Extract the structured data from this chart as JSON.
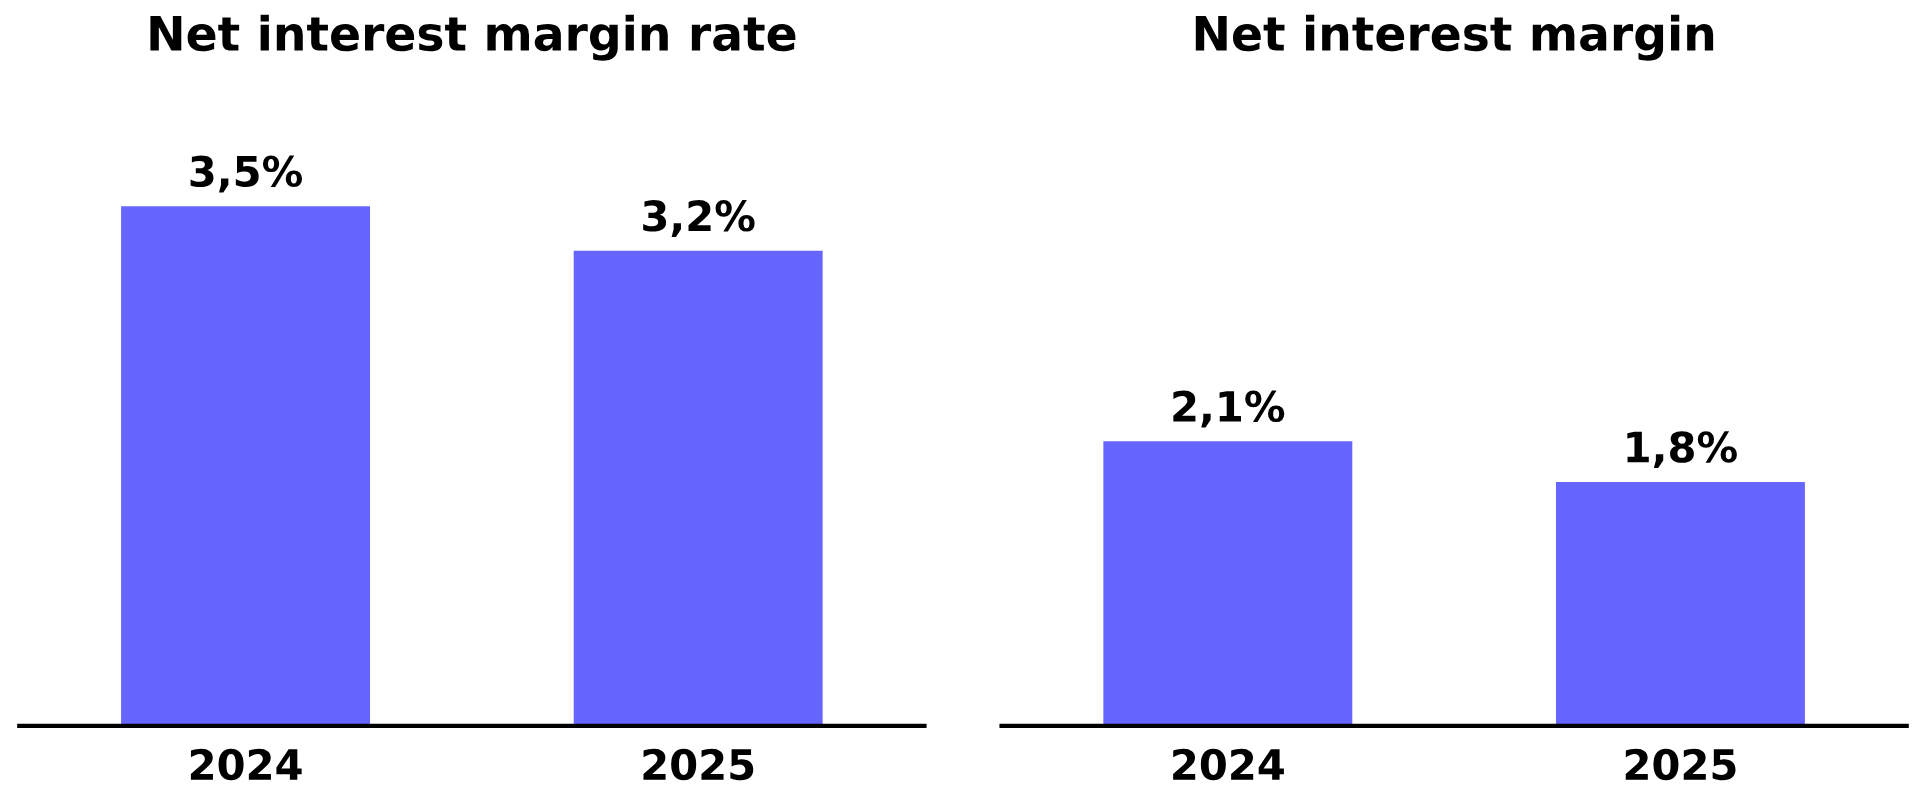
{
  "chart_data": [
    {
      "type": "bar",
      "title": "Net interest margin rate",
      "categories": [
        "2024",
        "2025"
      ],
      "values": [
        3.5,
        3.2
      ],
      "value_labels": [
        "3,5%",
        "3,2%"
      ],
      "color": "#6666ff",
      "tick_labels": "x",
      "grid": false,
      "legend": false
    },
    {
      "type": "bar",
      "title": "Net interest margin",
      "categories": [
        "2024",
        "2025"
      ],
      "values": [
        2.1,
        1.8
      ],
      "value_labels": [
        "2,1%",
        "1,8%"
      ],
      "color": "#6666ff",
      "tick_labels": "x",
      "grid": false,
      "legend": false
    }
  ]
}
